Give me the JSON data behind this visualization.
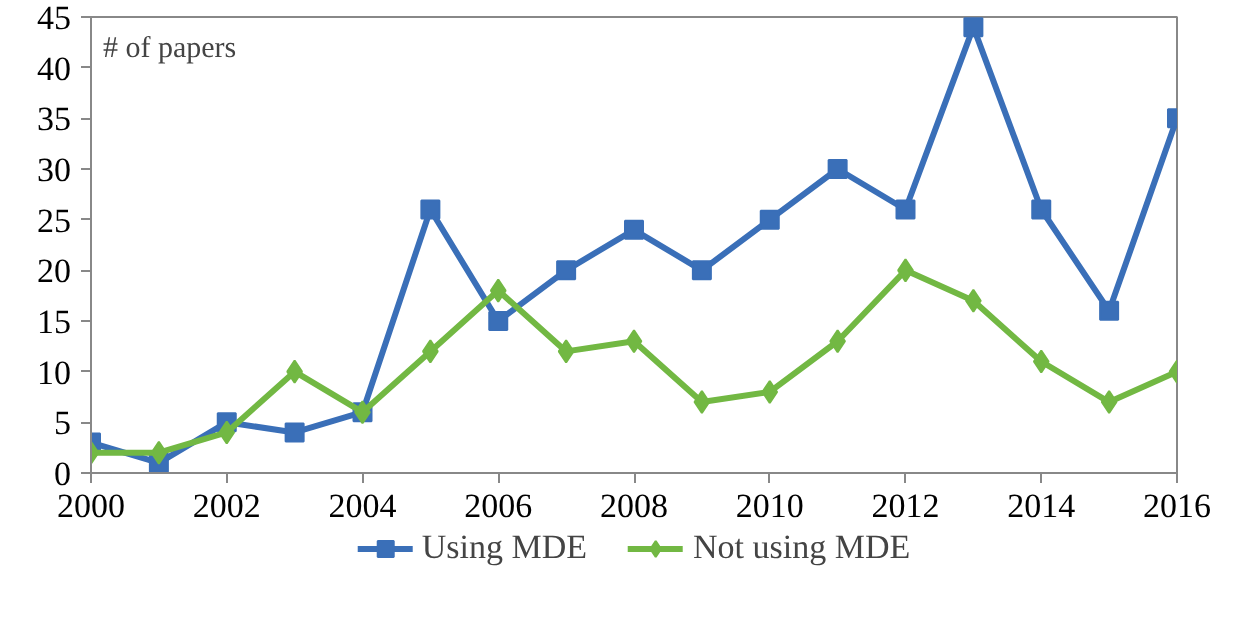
{
  "chart_data": {
    "type": "line",
    "ylabel": "# of papers",
    "x": [
      2000,
      2001,
      2002,
      2003,
      2004,
      2005,
      2006,
      2007,
      2008,
      2009,
      2010,
      2011,
      2012,
      2013,
      2014,
      2015,
      2016
    ],
    "series": [
      {
        "name": "Using MDE",
        "color": "#3a6fb8",
        "marker": "square",
        "values": [
          3,
          1,
          5,
          4,
          6,
          26,
          15,
          20,
          24,
          20,
          25,
          30,
          26,
          44,
          26,
          16,
          35
        ]
      },
      {
        "name": "Not using MDE",
        "color": "#72b843",
        "marker": "diamond",
        "values": [
          2,
          2,
          4,
          10,
          6,
          12,
          18,
          12,
          13,
          7,
          8,
          13,
          20,
          17,
          11,
          7,
          10
        ]
      }
    ],
    "xlim": [
      2000,
      2016
    ],
    "xticks": [
      2000,
      2002,
      2004,
      2006,
      2008,
      2010,
      2012,
      2014,
      2016
    ],
    "ylim": [
      0,
      45
    ],
    "yticks": [
      0,
      5,
      10,
      15,
      20,
      25,
      30,
      35,
      40,
      45
    ],
    "grid": false,
    "legend": "bottom",
    "line_style": "solid"
  }
}
